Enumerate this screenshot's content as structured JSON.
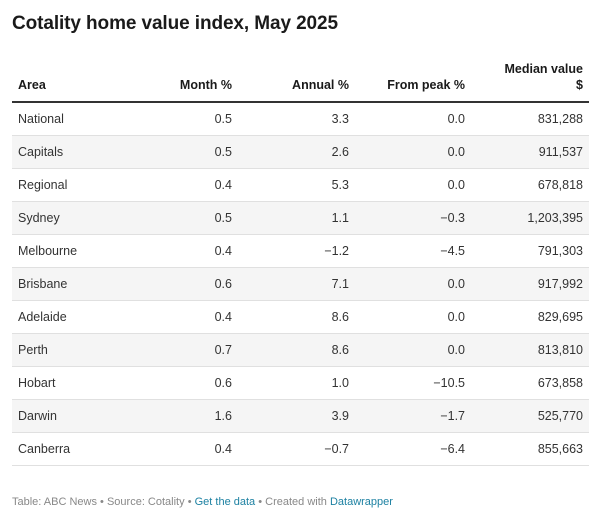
{
  "title": "Cotality home value index, May 2025",
  "chart_data": {
    "type": "table",
    "title": "Cotality home value index, May 2025",
    "columns": [
      {
        "label": "Area",
        "label2": "",
        "align": "left"
      },
      {
        "label": "Month %",
        "label2": "",
        "align": "right"
      },
      {
        "label": "Annual %",
        "label2": "",
        "align": "right"
      },
      {
        "label": "From peak %",
        "label2": "",
        "align": "right"
      },
      {
        "label": "Median value",
        "label2": "$",
        "align": "right"
      }
    ],
    "rows": [
      [
        "National",
        "0.5",
        "3.3",
        "0.0",
        "831,288"
      ],
      [
        "Capitals",
        "0.5",
        "2.6",
        "0.0",
        "911,537"
      ],
      [
        "Regional",
        "0.4",
        "5.3",
        "0.0",
        "678,818"
      ],
      [
        "Sydney",
        "0.5",
        "1.1",
        "−0.3",
        "1,203,395"
      ],
      [
        "Melbourne",
        "0.4",
        "−1.2",
        "−4.5",
        "791,303"
      ],
      [
        "Brisbane",
        "0.6",
        "7.1",
        "0.0",
        "917,992"
      ],
      [
        "Adelaide",
        "0.4",
        "8.6",
        "0.0",
        "829,695"
      ],
      [
        "Perth",
        "0.7",
        "8.6",
        "0.0",
        "813,810"
      ],
      [
        "Hobart",
        "0.6",
        "1.0",
        "−10.5",
        "673,858"
      ],
      [
        "Darwin",
        "1.6",
        "3.9",
        "−1.7",
        "525,770"
      ],
      [
        "Canberra",
        "0.4",
        "−0.7",
        "−6.4",
        "855,663"
      ]
    ]
  },
  "footer": {
    "table_credit": "Table: ABC News",
    "separator": "•",
    "source": "Source: Cotality",
    "get_data": "Get the data",
    "created_with": "Created with",
    "tool": "Datawrapper"
  },
  "colors": {
    "link": "#1d81a2",
    "stripe": "#f5f5f5",
    "header_rule": "#333333"
  }
}
